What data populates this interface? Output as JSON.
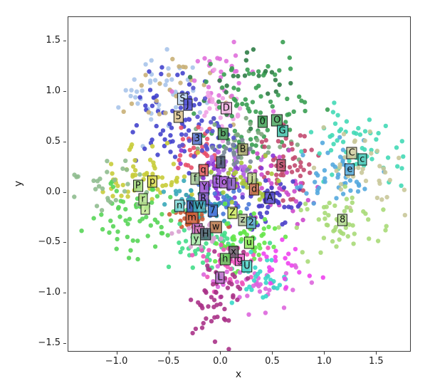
{
  "figure": {
    "xlabel": "x",
    "ylabel": "y",
    "background": "#ffffff",
    "spine_color": "#3a3a3a"
  },
  "chart_data": {
    "type": "scatter",
    "title": "",
    "xlabel": "x",
    "ylabel": "y",
    "xlim": [
      -1.47,
      1.82
    ],
    "ylim": [
      -1.57,
      1.74
    ],
    "grid": false,
    "legend": "none",
    "point_radius": 3.2,
    "point_opacity": 0.9,
    "xticks": [
      {
        "value": -1.0,
        "label": "−1.0"
      },
      {
        "value": -0.5,
        "label": "−0.5"
      },
      {
        "value": 0.0,
        "label": "0.0"
      },
      {
        "value": 0.5,
        "label": "0.5"
      },
      {
        "value": 1.0,
        "label": "1.0"
      },
      {
        "value": 1.5,
        "label": "1.5"
      }
    ],
    "yticks": [
      {
        "value": -1.5,
        "label": "−1.5"
      },
      {
        "value": -1.0,
        "label": "−1.0"
      },
      {
        "value": -0.5,
        "label": "−0.5"
      },
      {
        "value": 0.0,
        "label": "0.0"
      },
      {
        "value": 0.5,
        "label": "0.5"
      },
      {
        "value": 1.0,
        "label": "1.0"
      },
      {
        "value": 1.5,
        "label": "1.5"
      }
    ],
    "cluster_labels": [
      {
        "text": "S",
        "x": -0.37,
        "y": 0.93,
        "color": "#b9d2f0"
      },
      {
        "text": "J",
        "x": -0.32,
        "y": 0.87,
        "color": "#4747d1"
      },
      {
        "text": "5",
        "x": -0.41,
        "y": 0.75,
        "color": "#d9c28c"
      },
      {
        "text": "D",
        "x": 0.05,
        "y": 0.84,
        "color": "#f2b3e3"
      },
      {
        "text": "0",
        "x": 0.4,
        "y": 0.7,
        "color": "#3fa055"
      },
      {
        "text": "O",
        "x": 0.54,
        "y": 0.72,
        "color": "#4ba55f"
      },
      {
        "text": "G",
        "x": 0.59,
        "y": 0.61,
        "color": "#3fc0a8"
      },
      {
        "text": "3",
        "x": -0.23,
        "y": 0.53,
        "color": "#5374cf"
      },
      {
        "text": "b",
        "x": 0.02,
        "y": 0.58,
        "color": "#4da05c"
      },
      {
        "text": "B",
        "x": 0.21,
        "y": 0.43,
        "color": "#a9af66"
      },
      {
        "text": "s",
        "x": 0.58,
        "y": 0.27,
        "color": "#c04a6b"
      },
      {
        "text": "C",
        "x": 1.26,
        "y": 0.39,
        "color": "#cfcb9e"
      },
      {
        "text": "c",
        "x": 1.36,
        "y": 0.33,
        "color": "#43c6b4"
      },
      {
        "text": "e",
        "x": 1.24,
        "y": 0.23,
        "color": "#55aadd"
      },
      {
        "text": "8",
        "x": 1.17,
        "y": -0.27,
        "color": "#b4da92"
      },
      {
        "text": "P",
        "x": -0.8,
        "y": 0.07,
        "color": "#a2d97a"
      },
      {
        "text": "p",
        "x": -0.66,
        "y": 0.11,
        "color": "#d9d94e"
      },
      {
        "text": ",",
        "x": -0.73,
        "y": -0.16,
        "color": "#c2ea94"
      },
      {
        "text": "r",
        "x": -0.75,
        "y": -0.07,
        "color": "#b2e18c"
      },
      {
        "text": "q",
        "x": -0.17,
        "y": 0.22,
        "color": "#e05b5b"
      },
      {
        "text": "i",
        "x": 0.0,
        "y": 0.3,
        "color": "#4c5d73"
      },
      {
        "text": "f",
        "x": -0.25,
        "y": 0.14,
        "color": "#a3c790"
      },
      {
        "text": "t",
        "x": -0.04,
        "y": 0.11,
        "color": "#9a58d4"
      },
      {
        "text": "o",
        "x": 0.03,
        "y": 0.1,
        "color": "#b164da"
      },
      {
        "text": "l",
        "x": 0.1,
        "y": 0.09,
        "color": "#8b5ac9"
      },
      {
        "text": "j",
        "x": 0.3,
        "y": 0.14,
        "color": "#bcd38a"
      },
      {
        "text": "d",
        "x": 0.32,
        "y": 0.03,
        "color": "#c26a4a"
      },
      {
        "text": "A",
        "x": 0.47,
        "y": -0.05,
        "color": "#4f46c8"
      },
      {
        "text": "Y",
        "x": -0.16,
        "y": 0.05,
        "color": "#9b51d1"
      },
      {
        "text": "R",
        "x": -0.17,
        "y": -0.06,
        "color": "#8d5bc9"
      },
      {
        "text": "n",
        "x": -0.4,
        "y": -0.13,
        "color": "#7fd9d9"
      },
      {
        "text": "N",
        "x": -0.28,
        "y": -0.14,
        "color": "#3b5ab9"
      },
      {
        "text": "W",
        "x": -0.21,
        "y": -0.14,
        "color": "#3aa9b9"
      },
      {
        "text": "7",
        "x": -0.08,
        "y": -0.18,
        "color": "#4a79d9"
      },
      {
        "text": "m",
        "x": -0.28,
        "y": -0.25,
        "color": "#cd5c35"
      },
      {
        "text": "Z",
        "x": 0.11,
        "y": -0.2,
        "color": "#cde95c"
      },
      {
        "text": "z",
        "x": 0.21,
        "y": -0.27,
        "color": "#b6c59c"
      },
      {
        "text": "2",
        "x": 0.29,
        "y": -0.3,
        "color": "#5caacd"
      },
      {
        "text": "w",
        "x": -0.05,
        "y": -0.34,
        "color": "#b97a4a"
      },
      {
        "text": "V",
        "x": -0.23,
        "y": -0.36,
        "color": "#c869c8"
      },
      {
        "text": "v",
        "x": -0.21,
        "y": -0.39,
        "color": "#d97ab9"
      },
      {
        "text": "H",
        "x": -0.15,
        "y": -0.41,
        "color": "#4a6a72"
      },
      {
        "text": "y",
        "x": -0.24,
        "y": -0.46,
        "color": "#a4e9a4"
      },
      {
        "text": "u",
        "x": 0.27,
        "y": -0.5,
        "color": "#90e95c"
      },
      {
        "text": "g",
        "x": 0.18,
        "y": -0.67,
        "color": "#e95cc9"
      },
      {
        "text": "x",
        "x": 0.12,
        "y": -0.59,
        "color": "#6a5a6a"
      },
      {
        "text": "h",
        "x": 0.04,
        "y": -0.66,
        "color": "#69c95c"
      },
      {
        "text": "U",
        "x": 0.25,
        "y": -0.73,
        "color": "#4ad9c9"
      },
      {
        "text": "L",
        "x": -0.01,
        "y": -0.84,
        "color": "#b969c9"
      }
    ],
    "clusters": [
      {
        "color": "#a9c4ea",
        "cx": -0.62,
        "cy": 1.05,
        "sx": 0.2,
        "sy": 0.18,
        "n": 40
      },
      {
        "color": "#4444cd",
        "cx": -0.52,
        "cy": 0.72,
        "sx": 0.2,
        "sy": 0.24,
        "n": 55
      },
      {
        "color": "#c9b077",
        "cx": -0.4,
        "cy": 1.02,
        "sx": 0.26,
        "sy": 0.2,
        "n": 26
      },
      {
        "color": "#e070dc",
        "cx": -0.02,
        "cy": 1.18,
        "sx": 0.2,
        "sy": 0.16,
        "n": 28
      },
      {
        "color": "#efa2e4",
        "cx": 0.05,
        "cy": 0.9,
        "sx": 0.18,
        "sy": 0.16,
        "n": 26
      },
      {
        "color": "#3a9e52",
        "cx": 0.3,
        "cy": 0.8,
        "sx": 0.26,
        "sy": 0.24,
        "n": 85
      },
      {
        "color": "#7da87d",
        "cx": 0.16,
        "cy": 0.46,
        "sx": 0.26,
        "sy": 0.18,
        "n": 38
      },
      {
        "color": "#2f7d46",
        "cx": 0.3,
        "cy": 1.1,
        "sx": 0.28,
        "sy": 0.16,
        "n": 22
      },
      {
        "color": "#e8506a",
        "cx": -0.27,
        "cy": 0.4,
        "sx": 0.13,
        "sy": 0.11,
        "n": 34
      },
      {
        "color": "#5a52d0",
        "cx": -0.18,
        "cy": 0.55,
        "sx": 0.16,
        "sy": 0.18,
        "n": 30
      },
      {
        "color": "#c24a70",
        "cx": 0.6,
        "cy": 0.28,
        "sx": 0.18,
        "sy": 0.16,
        "n": 50
      },
      {
        "color": "#cc49cc",
        "cx": 0.62,
        "cy": 0.02,
        "sx": 0.16,
        "sy": 0.18,
        "n": 32
      },
      {
        "color": "#8a35d6",
        "cx": 0.04,
        "cy": 0.1,
        "sx": 0.17,
        "sy": 0.16,
        "n": 50
      },
      {
        "color": "#b569e6",
        "cx": 0.1,
        "cy": 0.28,
        "sx": 0.16,
        "sy": 0.13,
        "n": 32
      },
      {
        "color": "#4a3fc9",
        "cx": 0.47,
        "cy": -0.08,
        "sx": 0.13,
        "sy": 0.13,
        "n": 38
      },
      {
        "color": "#2f9aae",
        "cx": -0.13,
        "cy": -0.12,
        "sx": 0.13,
        "sy": 0.11,
        "n": 32
      },
      {
        "color": "#4a79d9",
        "cx": 0.02,
        "cy": -0.16,
        "sx": 0.13,
        "sy": 0.11,
        "n": 28
      },
      {
        "color": "#cd5c35",
        "cx": -0.3,
        "cy": -0.26,
        "sx": 0.11,
        "sy": 0.09,
        "n": 26
      },
      {
        "color": "#a9c93c",
        "cx": 0.27,
        "cy": 0.12,
        "sx": 0.16,
        "sy": 0.13,
        "n": 28
      },
      {
        "color": "#7a8a99",
        "cx": 0.14,
        "cy": 0.4,
        "sx": 0.13,
        "sy": 0.11,
        "n": 20
      },
      {
        "color": "#c8cc3a",
        "cx": -0.75,
        "cy": 0.15,
        "sx": 0.2,
        "sy": 0.16,
        "n": 55
      },
      {
        "color": "#56d556",
        "cx": -0.82,
        "cy": -0.22,
        "sx": 0.22,
        "sy": 0.18,
        "n": 60
      },
      {
        "color": "#8fbc8f",
        "cx": -1.05,
        "cy": 0.08,
        "sx": 0.18,
        "sy": 0.13,
        "n": 28
      },
      {
        "color": "#42d9b6",
        "cx": 1.3,
        "cy": 0.45,
        "sx": 0.22,
        "sy": 0.2,
        "n": 55
      },
      {
        "color": "#54a8de",
        "cx": 1.15,
        "cy": 0.18,
        "sx": 0.18,
        "sy": 0.16,
        "n": 45
      },
      {
        "color": "#c9c89a",
        "cx": 1.38,
        "cy": 0.22,
        "sx": 0.24,
        "sy": 0.22,
        "n": 38
      },
      {
        "color": "#a9da78",
        "cx": 1.15,
        "cy": -0.3,
        "sx": 0.2,
        "sy": 0.16,
        "n": 55
      },
      {
        "color": "#44dd88",
        "cx": -0.12,
        "cy": -0.52,
        "sx": 0.2,
        "sy": 0.14,
        "n": 60
      },
      {
        "color": "#66e649",
        "cx": 0.22,
        "cy": -0.48,
        "sx": 0.16,
        "sy": 0.13,
        "n": 55
      },
      {
        "color": "#ee55bb",
        "cx": 0.08,
        "cy": -0.68,
        "sx": 0.16,
        "sy": 0.13,
        "n": 38
      },
      {
        "color": "#dd66dd",
        "cx": 0.32,
        "cy": -0.92,
        "sx": 0.2,
        "sy": 0.13,
        "n": 38
      },
      {
        "color": "#aa3388",
        "cx": -0.02,
        "cy": -1.08,
        "sx": 0.13,
        "sy": 0.26,
        "n": 55
      },
      {
        "color": "#38d8c8",
        "cx": 0.42,
        "cy": -0.85,
        "sx": 0.16,
        "sy": 0.11,
        "n": 28
      },
      {
        "color": "#ee44ee",
        "cx": 0.6,
        "cy": -0.68,
        "sx": 0.13,
        "sy": 0.11,
        "n": 20
      },
      {
        "color": "#d9a0d0",
        "cx": -0.2,
        "cy": -0.38,
        "sx": 0.11,
        "sy": 0.09,
        "n": 24
      },
      {
        "color": "#3aa9b9",
        "cx": -0.35,
        "cy": -0.05,
        "sx": 0.13,
        "sy": 0.11,
        "n": 26
      }
    ]
  }
}
